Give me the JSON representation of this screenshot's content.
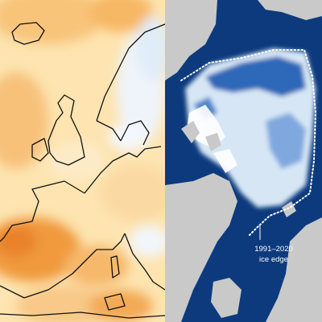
{
  "annotation": {
    "lines": [
      "1991–2020",
      "ice edge"
    ]
  }
}
